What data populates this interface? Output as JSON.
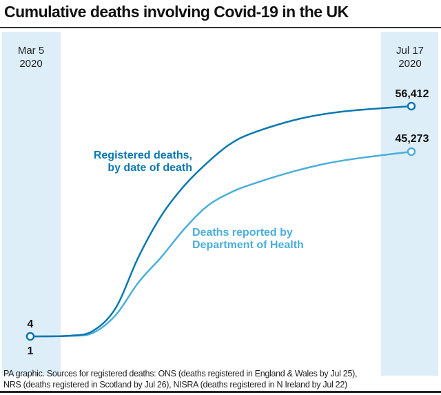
{
  "chart_data": {
    "type": "line",
    "title": "Cumulative deaths involving Covid-19 in the UK",
    "x_start_label": [
      "Mar 5",
      "2020"
    ],
    "x_end_label": [
      "Jul 17",
      "2020"
    ],
    "xlim": [
      "2020-03-05",
      "2020-07-17"
    ],
    "ylim": [
      0,
      56412
    ],
    "grid": false,
    "series": [
      {
        "name": "Registered deaths, by date of death",
        "name_lines": [
          "Registered deaths,",
          "by date of death"
        ],
        "color": "#0a78b0",
        "start_label": "4",
        "end_label": "56,412",
        "points": [
          [
            "2020-03-05",
            4
          ],
          [
            "2020-03-19",
            170
          ],
          [
            "2020-03-27",
            1350
          ],
          [
            "2020-04-04",
            6930
          ],
          [
            "2020-04-12",
            19400
          ],
          [
            "2020-04-20",
            29500
          ],
          [
            "2020-04-28",
            36800
          ],
          [
            "2020-05-06",
            42400
          ],
          [
            "2020-05-14",
            47000
          ],
          [
            "2020-05-22",
            49800
          ],
          [
            "2020-06-07",
            53200
          ],
          [
            "2020-06-23",
            55100
          ],
          [
            "2020-07-17",
            56412
          ]
        ]
      },
      {
        "name": "Deaths reported by Department of Health",
        "name_lines": [
          "Deaths reported by",
          "Department of Health"
        ],
        "color": "#4aaedc",
        "start_label": "1",
        "end_label": "45,273",
        "points": [
          [
            "2020-03-05",
            1
          ],
          [
            "2020-03-19",
            120
          ],
          [
            "2020-03-27",
            850
          ],
          [
            "2020-04-04",
            5200
          ],
          [
            "2020-04-12",
            13200
          ],
          [
            "2020-04-20",
            19400
          ],
          [
            "2020-04-28",
            26200
          ],
          [
            "2020-05-06",
            31800
          ],
          [
            "2020-05-14",
            35100
          ],
          [
            "2020-05-22",
            37300
          ],
          [
            "2020-06-07",
            40700
          ],
          [
            "2020-06-23",
            43100
          ],
          [
            "2020-07-17",
            45273
          ]
        ]
      }
    ],
    "band_color": "#deeef9"
  },
  "footnote": [
    "PA graphic. Sources for registered deaths: ONS (deaths registered in England & Wales by Jul 25),",
    "NRS (deaths registered in Scotland by Jul 26), NISRA (deaths registered in N Ireland by Jul 22)"
  ]
}
